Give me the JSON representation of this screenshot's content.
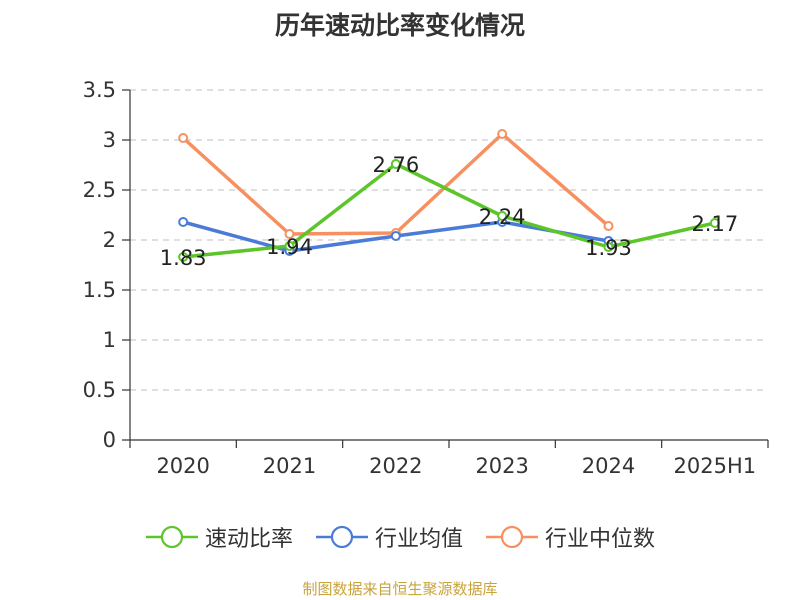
{
  "chart_data": {
    "type": "line",
    "title": "历年速动比率变化情况",
    "categories": [
      "2020",
      "2021",
      "2022",
      "2023",
      "2024",
      "2025H1"
    ],
    "ylim": [
      0,
      3.5
    ],
    "yticks": [
      0,
      0.5,
      1,
      1.5,
      2,
      2.5,
      3,
      3.5
    ],
    "ytick_labels": [
      "0",
      "0.5",
      "1",
      "1.5",
      "2",
      "2.5",
      "3",
      "3.5"
    ],
    "grid": true,
    "legend_position": "bottom",
    "series": [
      {
        "name": "速动比率",
        "color": "#5cc52a",
        "values": [
          1.83,
          1.94,
          2.76,
          2.24,
          1.93,
          2.17
        ],
        "labels": [
          "1.83",
          "1.94",
          "2.76",
          "2.24",
          "1.93",
          "2.17"
        ]
      },
      {
        "name": "行业均值",
        "color": "#4b7bd9",
        "values": [
          2.18,
          1.89,
          2.04,
          2.18,
          1.99,
          null
        ]
      },
      {
        "name": "行业中位数",
        "color": "#f79060",
        "values": [
          3.02,
          2.06,
          2.07,
          3.06,
          2.14,
          null
        ]
      }
    ]
  },
  "source_text": "制图数据来自恒生聚源数据库"
}
